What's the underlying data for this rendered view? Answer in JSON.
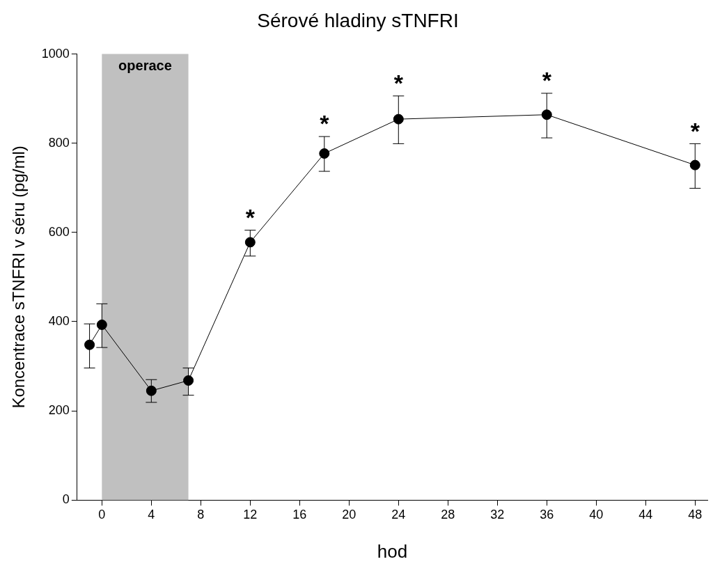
{
  "chart_data": {
    "type": "line",
    "title": "Sérové hladiny sTNFRI",
    "xlabel": "hod",
    "ylabel": "Koncentrace sTNFRI v séru (pg/ml)",
    "x": [
      -1,
      0,
      4,
      7,
      12,
      18,
      24,
      36,
      48
    ],
    "values": [
      348,
      393,
      245,
      268,
      578,
      777,
      854,
      864,
      751
    ],
    "errors": [
      [
        296,
        395
      ],
      [
        342,
        440
      ],
      [
        219,
        270
      ],
      [
        235,
        296
      ],
      [
        547,
        605
      ],
      [
        737,
        815
      ],
      [
        799,
        906
      ],
      [
        812,
        912
      ],
      [
        699,
        799
      ]
    ],
    "color": "#000000",
    "marker": "circle",
    "line_style": "solid",
    "grid": false,
    "legend": false,
    "xlim": [
      -2,
      49
    ],
    "xticks": [
      0,
      4,
      8,
      12,
      16,
      20,
      24,
      28,
      32,
      36,
      40,
      44,
      48
    ],
    "ylim": [
      0,
      1000
    ],
    "yticks": [
      0,
      200,
      400,
      600,
      800,
      1000
    ],
    "bands": [
      {
        "axis": "x",
        "from": 0,
        "to": 7,
        "label": "operace",
        "color": "#c0c0c0"
      }
    ],
    "annotations": [
      {
        "text": "*",
        "x": 12,
        "y": 578
      },
      {
        "text": "*",
        "x": 18,
        "y": 777
      },
      {
        "text": "*",
        "x": 24,
        "y": 854
      },
      {
        "text": "*",
        "x": 36,
        "y": 864
      },
      {
        "text": "*",
        "x": 48,
        "y": 751
      }
    ]
  }
}
